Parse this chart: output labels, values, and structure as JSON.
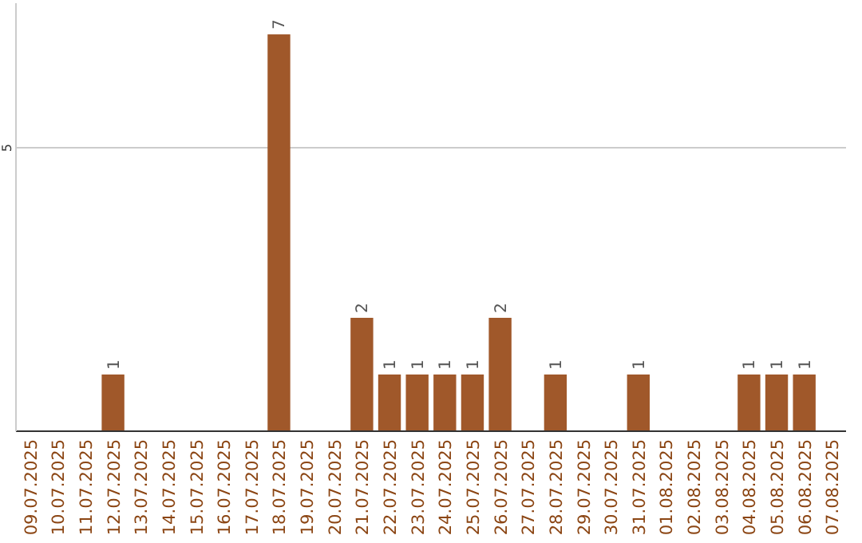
{
  "chart_data": {
    "type": "bar",
    "categories": [
      "09.07.2025",
      "10.07.2025",
      "11.07.2025",
      "12.07.2025",
      "13.07.2025",
      "14.07.2025",
      "15.07.2025",
      "16.07.2025",
      "17.07.2025",
      "18.07.2025",
      "19.07.2025",
      "20.07.2025",
      "21.07.2025",
      "22.07.2025",
      "23.07.2025",
      "24.07.2025",
      "25.07.2025",
      "26.07.2025",
      "27.07.2025",
      "28.07.2025",
      "29.07.2025",
      "30.07.2025",
      "31.07.2025",
      "01.08.2025",
      "02.08.2025",
      "03.08.2025",
      "04.08.2025",
      "05.08.2025",
      "06.08.2025",
      "07.08.2025"
    ],
    "values": [
      0,
      0,
      0,
      1,
      0,
      0,
      0,
      0,
      0,
      7,
      0,
      0,
      2,
      1,
      1,
      1,
      1,
      2,
      0,
      1,
      0,
      0,
      1,
      0,
      0,
      0,
      1,
      1,
      1,
      0
    ],
    "value_labels": [
      null,
      null,
      null,
      "1",
      null,
      null,
      null,
      null,
      null,
      "7",
      null,
      null,
      "2",
      "1",
      "1",
      "1",
      "1",
      "2",
      null,
      "1",
      null,
      null,
      "1",
      null,
      null,
      null,
      "1",
      "1",
      "1",
      null
    ],
    "color": "#a0582a",
    "ylim": [
      0,
      7.55
    ],
    "yticks": [
      5
    ],
    "grid": "y"
  }
}
